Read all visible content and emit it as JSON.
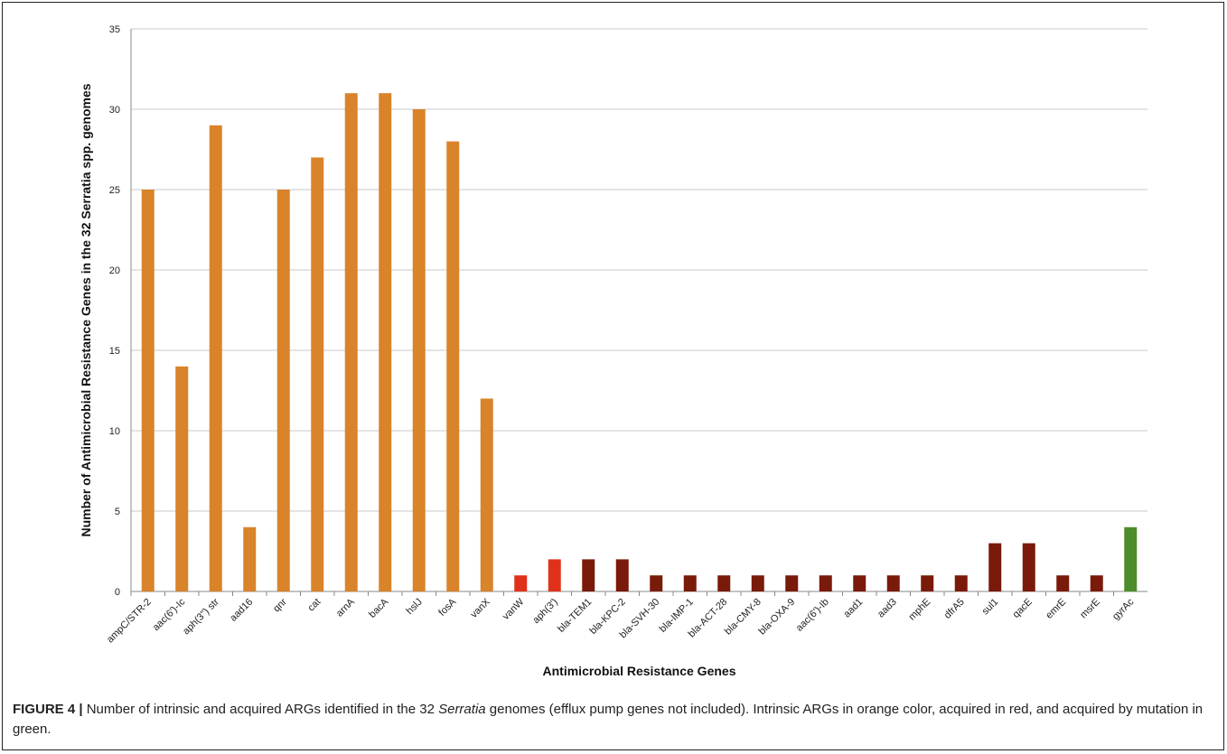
{
  "chart_data": {
    "type": "bar",
    "xlabel": "Antimicrobial Resistance Genes",
    "ylabel": "Number of Antimicrobial Resistance Genes in the 32 Serratia spp. genomes",
    "ylim": [
      0,
      35
    ],
    "yticks": [
      0,
      5,
      10,
      15,
      20,
      25,
      30,
      35
    ],
    "grid": true,
    "categories": [
      "ampC/STR-2",
      "aac(6')-Ic",
      "aph(3'') str",
      "aad16",
      "qnr",
      "cat",
      "arnA",
      "bacA",
      "hslJ",
      "fosA",
      "vanX",
      "vanW",
      "aph(3')",
      "bla-TEM1",
      "bla-KPC-2",
      "bla-SVH-30",
      "bla-IMP-1",
      "bla-ACT-28",
      "bla-CMY-8",
      "bla-OXA-9",
      "aac(6')-Ib",
      "aad1",
      "aad3",
      "mphE",
      "dfrA5",
      "sul1",
      "qacE",
      "emrE",
      "msrE",
      "gyrAc"
    ],
    "values": [
      25,
      14,
      29,
      4,
      25,
      27,
      31,
      31,
      30,
      28,
      12,
      1,
      2,
      2,
      2,
      1,
      1,
      1,
      1,
      1,
      1,
      1,
      1,
      1,
      1,
      3,
      3,
      1,
      1,
      4
    ],
    "bar_colors": [
      "#d9832a",
      "#d9832a",
      "#d9832a",
      "#d9832a",
      "#d9832a",
      "#d9832a",
      "#d9832a",
      "#d9832a",
      "#d9832a",
      "#d9832a",
      "#d9832a",
      "#e0321a",
      "#e0321a",
      "#7a1a0a",
      "#7a1a0a",
      "#7a1a0a",
      "#7a1a0a",
      "#7a1a0a",
      "#7a1a0a",
      "#7a1a0a",
      "#7a1a0a",
      "#7a1a0a",
      "#7a1a0a",
      "#7a1a0a",
      "#7a1a0a",
      "#7a1a0a",
      "#7a1a0a",
      "#7a1a0a",
      "#7a1a0a",
      "#4d8c2a"
    ]
  },
  "caption": {
    "lead": "FIGURE 4 |",
    "text_1": " Number of intrinsic and acquired ARGs identified in the 32 ",
    "italic": "Serratia",
    "text_2": " genomes (efflux pump genes not included). Intrinsic ARGs in orange color, acquired in red, and acquired by mutation in green."
  },
  "colors": {
    "gridline": "#c8c8c8",
    "axis": "#888888"
  }
}
